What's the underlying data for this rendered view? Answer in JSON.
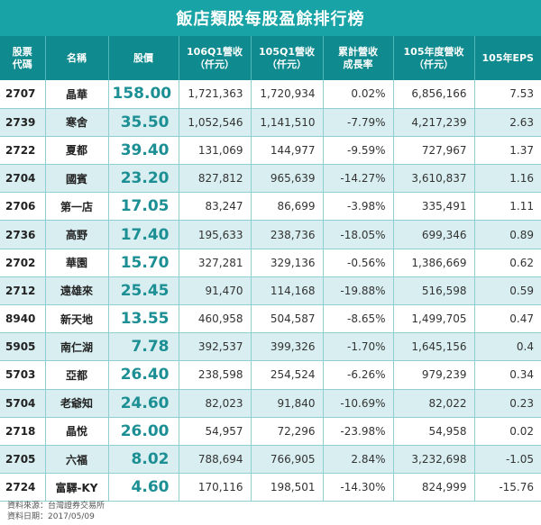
{
  "title": "飯店類股每股盈餘排行榜",
  "headers": {
    "code": [
      "股票",
      "代碼"
    ],
    "name": "名稱",
    "price": "股價",
    "rev106q1": [
      "106Q1營收",
      "（仟元）"
    ],
    "rev105q1": [
      "105Q1營收",
      "（仟元）"
    ],
    "growth": [
      "累計營收",
      "成長率"
    ],
    "rev105": [
      "105年度營收",
      "（仟元）"
    ],
    "eps": "105年EPS"
  },
  "rows": [
    {
      "code": "2707",
      "name": "晶華",
      "price": "158.00",
      "rev106q1": "1,721,363",
      "rev105q1": "1,720,934",
      "growth": "0.02%",
      "rev105": "6,856,166",
      "eps": "7.53"
    },
    {
      "code": "2739",
      "name": "寒舍",
      "price": "35.50",
      "rev106q1": "1,052,546",
      "rev105q1": "1,141,510",
      "growth": "-7.79%",
      "rev105": "4,217,239",
      "eps": "2.63"
    },
    {
      "code": "2722",
      "name": "夏都",
      "price": "39.40",
      "rev106q1": "131,069",
      "rev105q1": "144,977",
      "growth": "-9.59%",
      "rev105": "727,967",
      "eps": "1.37"
    },
    {
      "code": "2704",
      "name": "國賓",
      "price": "23.20",
      "rev106q1": "827,812",
      "rev105q1": "965,639",
      "growth": "-14.27%",
      "rev105": "3,610,837",
      "eps": "1.16"
    },
    {
      "code": "2706",
      "name": "第一店",
      "price": "17.05",
      "rev106q1": "83,247",
      "rev105q1": "86,699",
      "growth": "-3.98%",
      "rev105": "335,491",
      "eps": "1.11"
    },
    {
      "code": "2736",
      "name": "高野",
      "price": "17.40",
      "rev106q1": "195,633",
      "rev105q1": "238,736",
      "growth": "-18.05%",
      "rev105": "699,346",
      "eps": "0.89"
    },
    {
      "code": "2702",
      "name": "華園",
      "price": "15.70",
      "rev106q1": "327,281",
      "rev105q1": "329,136",
      "growth": "-0.56%",
      "rev105": "1,386,669",
      "eps": "0.62"
    },
    {
      "code": "2712",
      "name": "遠雄來",
      "price": "25.45",
      "rev106q1": "91,470",
      "rev105q1": "114,168",
      "growth": "-19.88%",
      "rev105": "516,598",
      "eps": "0.59"
    },
    {
      "code": "8940",
      "name": "新天地",
      "price": "13.55",
      "rev106q1": "460,958",
      "rev105q1": "504,587",
      "growth": "-8.65%",
      "rev105": "1,499,705",
      "eps": "0.47"
    },
    {
      "code": "5905",
      "name": "南仁湖",
      "price": "7.78",
      "rev106q1": "392,537",
      "rev105q1": "399,326",
      "growth": "-1.70%",
      "rev105": "1,645,156",
      "eps": "0.4"
    },
    {
      "code": "5703",
      "name": "亞都",
      "price": "26.40",
      "rev106q1": "238,598",
      "rev105q1": "254,524",
      "growth": "-6.26%",
      "rev105": "979,239",
      "eps": "0.34"
    },
    {
      "code": "5704",
      "name": "老爺知",
      "price": "24.60",
      "rev106q1": "82,023",
      "rev105q1": "91,840",
      "growth": "-10.69%",
      "rev105": "82,022",
      "eps": "0.23"
    },
    {
      "code": "2718",
      "name": "晶悅",
      "price": "26.00",
      "rev106q1": "54,957",
      "rev105q1": "72,296",
      "growth": "-23.98%",
      "rev105": "54,958",
      "eps": "0.02"
    },
    {
      "code": "2705",
      "name": "六福",
      "price": "8.02",
      "rev106q1": "788,694",
      "rev105q1": "766,905",
      "growth": "2.84%",
      "rev105": "3,232,698",
      "eps": "-1.05"
    },
    {
      "code": "2724",
      "name": "富驛-KY",
      "price": "4.60",
      "rev106q1": "170,116",
      "rev105q1": "198,501",
      "growth": "-14.30%",
      "rev105": "824,999",
      "eps": "-15.76"
    }
  ],
  "footer": {
    "source": "資料來源：台灣證券交易所",
    "date": "資料日期：2017/05/09"
  }
}
